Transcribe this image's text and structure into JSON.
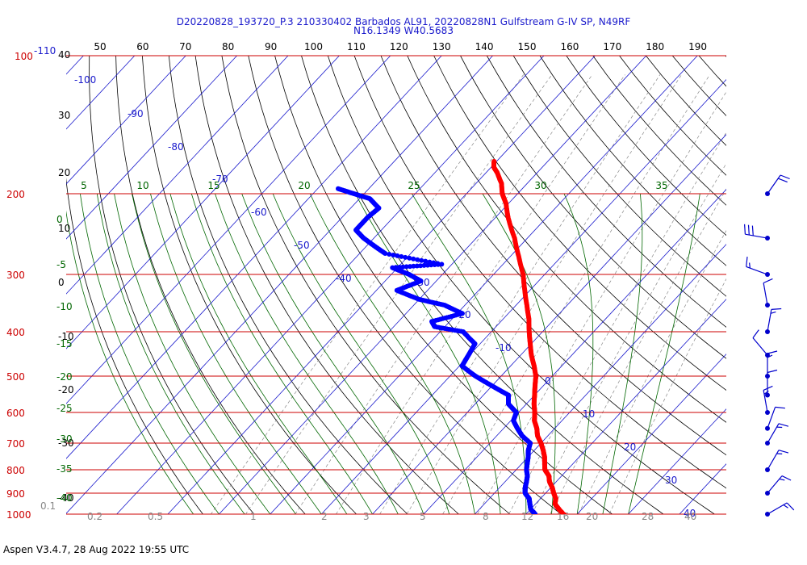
{
  "header": {
    "title_line1": "D20220828_193720_P.3 210330402 Barbados AL91, 20220828N1 Gulfstream G-IV SP, N49RF",
    "title_line2": "N16.1349 W40.5683"
  },
  "footer": {
    "text": "Aspen V3.4.7, 28 Aug 2022  19:55 UTC"
  },
  "colors": {
    "isobar": "#cc0000",
    "isotherm": "#1a1acc",
    "dry_adiabat": "#000000",
    "moist_adiabat": "#006600",
    "mixing_ratio": "#888888",
    "temperature": "#ff0000",
    "dewpoint": "#0000ff",
    "wind": "#0000cc"
  },
  "chart_data": {
    "type": "skew-t log-p",
    "title": "D20220828_193720_P.3 210330402 Barbados AL91, 20220828N1 Gulfstream G-IV SP, N49RF",
    "subtitle": "N16.1349 W40.5683",
    "pressure_levels": [
      100,
      200,
      300,
      400,
      500,
      600,
      700,
      800,
      900,
      1000
    ],
    "pressure_tick_labels": [
      "100",
      "200",
      "300",
      "400",
      "500",
      "600",
      "700",
      "800",
      "900",
      "1000"
    ],
    "pressure_top_extra_label": "-110",
    "isotherm_labels": [
      "-100",
      "-90",
      "-80",
      "-70",
      "-60",
      "-50",
      "-40",
      "-30",
      "-20",
      "-10",
      "0",
      "10",
      "20",
      "30",
      "40"
    ],
    "theta_top_labels": [
      "50",
      "60",
      "70",
      "80",
      "90",
      "100",
      "110",
      "120",
      "130",
      "140",
      "150",
      "160",
      "170",
      "180",
      "190"
    ],
    "theta_left_labels": [
      "40",
      "30",
      "20",
      "10",
      "0",
      "-10",
      "-20",
      "-30",
      "-40"
    ],
    "thetae_row_labels": [
      "5",
      "10",
      "15",
      "20",
      "25",
      "30",
      "35"
    ],
    "thetae_left_labels": [
      "0",
      "-5",
      "-10",
      "-15",
      "-20",
      "-25",
      "-30",
      "-35",
      "-40"
    ],
    "mixing_ratio_labels": [
      "0.1",
      "0.2",
      "0.5",
      "1",
      "2",
      "3",
      "5",
      "8",
      "12",
      "16",
      "20",
      "28",
      "40"
    ],
    "temperature_profile": [
      [
        1012,
        28.3
      ],
      [
        1000,
        27.3
      ],
      [
        975,
        25.5
      ],
      [
        950,
        23.8
      ],
      [
        925,
        23.0
      ],
      [
        900,
        21.6
      ],
      [
        875,
        20.3
      ],
      [
        850,
        18.7
      ],
      [
        825,
        17.5
      ],
      [
        800,
        15.6
      ],
      [
        775,
        14.4
      ],
      [
        750,
        13.2
      ],
      [
        725,
        11.7
      ],
      [
        700,
        10.0
      ],
      [
        675,
        8.0
      ],
      [
        650,
        6.5
      ],
      [
        625,
        4.6
      ],
      [
        600,
        3.2
      ],
      [
        575,
        1.5
      ],
      [
        550,
        0.0
      ],
      [
        525,
        -1.6
      ],
      [
        500,
        -3.2
      ],
      [
        475,
        -5.4
      ],
      [
        450,
        -7.9
      ],
      [
        425,
        -10.2
      ],
      [
        400,
        -12.6
      ],
      [
        375,
        -15.0
      ],
      [
        350,
        -17.9
      ],
      [
        325,
        -21.0
      ],
      [
        300,
        -24.2
      ],
      [
        275,
        -28.2
      ],
      [
        250,
        -32.5
      ],
      [
        225,
        -37.6
      ],
      [
        210,
        -40.5
      ],
      [
        200,
        -43.0
      ],
      [
        190,
        -45.0
      ],
      [
        180,
        -47.8
      ],
      [
        175,
        -49.5
      ],
      [
        170,
        -50.5
      ]
    ],
    "dewpoint_profile": [
      [
        1012,
        22.0
      ],
      [
        1000,
        21.8
      ],
      [
        975,
        20.0
      ],
      [
        950,
        18.9
      ],
      [
        925,
        17.8
      ],
      [
        900,
        16.0
      ],
      [
        875,
        15.0
      ],
      [
        850,
        14.2
      ],
      [
        825,
        13.3
      ],
      [
        800,
        12.0
      ],
      [
        775,
        11.0
      ],
      [
        750,
        10.0
      ],
      [
        725,
        8.8
      ],
      [
        700,
        7.9
      ],
      [
        675,
        5.0
      ],
      [
        650,
        2.7
      ],
      [
        625,
        0.5
      ],
      [
        600,
        -0.4
      ],
      [
        575,
        -3.5
      ],
      [
        550,
        -5.1
      ],
      [
        525,
        -10.0
      ],
      [
        500,
        -15.0
      ],
      [
        475,
        -19.5
      ],
      [
        450,
        -20.2
      ],
      [
        425,
        -21.0
      ],
      [
        400,
        -25.5
      ],
      [
        390,
        -32.0
      ],
      [
        380,
        -33.5
      ],
      [
        365,
        -29.0
      ],
      [
        350,
        -34.0
      ],
      [
        340,
        -40.0
      ],
      [
        325,
        -46.0
      ],
      [
        310,
        -43.0
      ],
      [
        300,
        -46.5
      ],
      [
        290,
        -51.0
      ],
      [
        285,
        -42.0
      ],
      [
        270,
        -55.0
      ],
      [
        260,
        -58.5
      ],
      [
        250,
        -62.0
      ],
      [
        240,
        -65.0
      ],
      [
        225,
        -65.0
      ],
      [
        215,
        -64.5
      ],
      [
        205,
        -68.0
      ],
      [
        200,
        -72.0
      ],
      [
        195,
        -76.0
      ]
    ],
    "wind_profile_kt": [
      [
        200,
        20
      ],
      [
        250,
        30
      ],
      [
        300,
        15
      ],
      [
        350,
        10
      ],
      [
        400,
        15
      ],
      [
        450,
        10
      ],
      [
        500,
        15
      ],
      [
        550,
        10
      ],
      [
        600,
        15
      ],
      [
        650,
        10
      ],
      [
        700,
        15
      ],
      [
        800,
        15
      ],
      [
        900,
        15
      ],
      [
        1000,
        15
      ]
    ],
    "grid": true,
    "legend": "none"
  }
}
